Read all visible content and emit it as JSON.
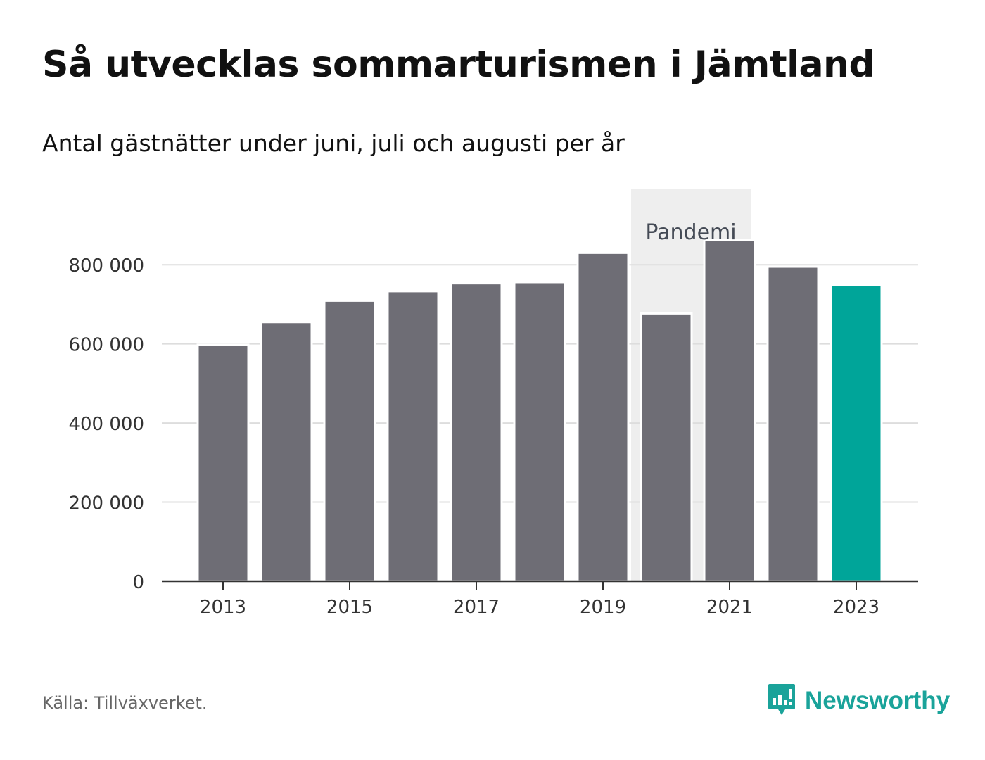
{
  "header": {
    "title": "Så utvecklas sommarturismen i Jämtland",
    "subtitle": "Antal gästnätter under juni, juli och augusti per år"
  },
  "footer": {
    "source": "Källa: Tillväxverket.",
    "brand": "Newsworthy"
  },
  "colors": {
    "bar": "#6e6d75",
    "highlight": "#00a599",
    "pandemic_band": "#eeeeee",
    "grid": "#dddddd",
    "axis": "#333333",
    "brand": "#1aa39a"
  },
  "icons": {
    "logo": "bar-chart-speech-bubble-icon"
  },
  "chart_data": {
    "type": "bar",
    "title": "Så utvecklas sommarturismen i Jämtland",
    "subtitle": "Antal gästnätter under juni, juli och augusti per år",
    "x": [
      2013,
      2014,
      2015,
      2016,
      2017,
      2018,
      2019,
      2020,
      2021,
      2022,
      2023
    ],
    "values": [
      598000,
      655000,
      709000,
      733000,
      753000,
      756000,
      830000,
      677000,
      863000,
      795000,
      749000
    ],
    "highlight_index": 10,
    "ylim": [
      0,
      900000
    ],
    "yticks": [
      0,
      200000,
      400000,
      600000,
      800000
    ],
    "ytick_labels": [
      "0",
      "200 000",
      "400 000",
      "600 000",
      "800 000"
    ],
    "xtick_labels": [
      "2013",
      "2015",
      "2017",
      "2019",
      "2021",
      "2023"
    ],
    "grid": true,
    "annotations": [
      {
        "text": "Pandemi",
        "x_range": [
          2020,
          2021
        ]
      }
    ],
    "source": "Källa: Tillväxverket."
  }
}
